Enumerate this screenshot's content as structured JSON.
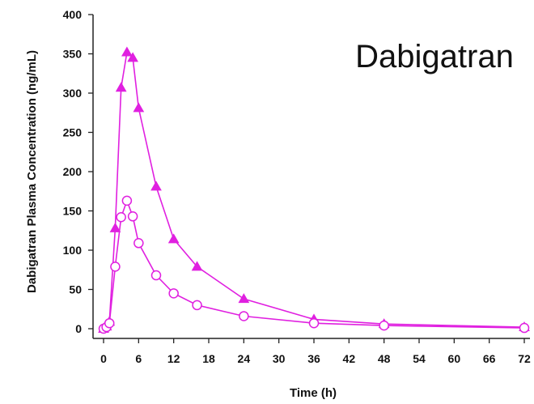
{
  "chart_data": {
    "type": "line",
    "title": "",
    "annotation": "Dabigatran",
    "xlabel": "Time (h)",
    "ylabel": "Dabigatran Plasma Concentration (ng/mL)",
    "xlim": [
      0,
      72
    ],
    "ylim": [
      0,
      400
    ],
    "xticks": [
      0,
      6,
      12,
      18,
      24,
      30,
      36,
      42,
      48,
      54,
      60,
      66,
      72
    ],
    "yticks": [
      0,
      50,
      100,
      150,
      200,
      250,
      300,
      350,
      400
    ],
    "grid": false,
    "legend": "none",
    "series": [
      {
        "marker": "filled-triangle",
        "color": "#e020e0",
        "x": [
          0,
          0.5,
          1,
          2,
          3,
          4,
          5,
          6,
          9,
          12,
          16,
          24,
          36,
          48,
          72
        ],
        "y": [
          0,
          3,
          9,
          128,
          307,
          352,
          345,
          281,
          181,
          114,
          79,
          38,
          12,
          6,
          2
        ]
      },
      {
        "marker": "open-circle",
        "color": "#e020e0",
        "x": [
          0,
          0.5,
          1,
          2,
          3,
          4,
          5,
          6,
          9,
          12,
          16,
          24,
          36,
          48,
          72
        ],
        "y": [
          0,
          2,
          7,
          79,
          142,
          163,
          143,
          109,
          68,
          45,
          30,
          16,
          7,
          4,
          1
        ]
      }
    ]
  }
}
